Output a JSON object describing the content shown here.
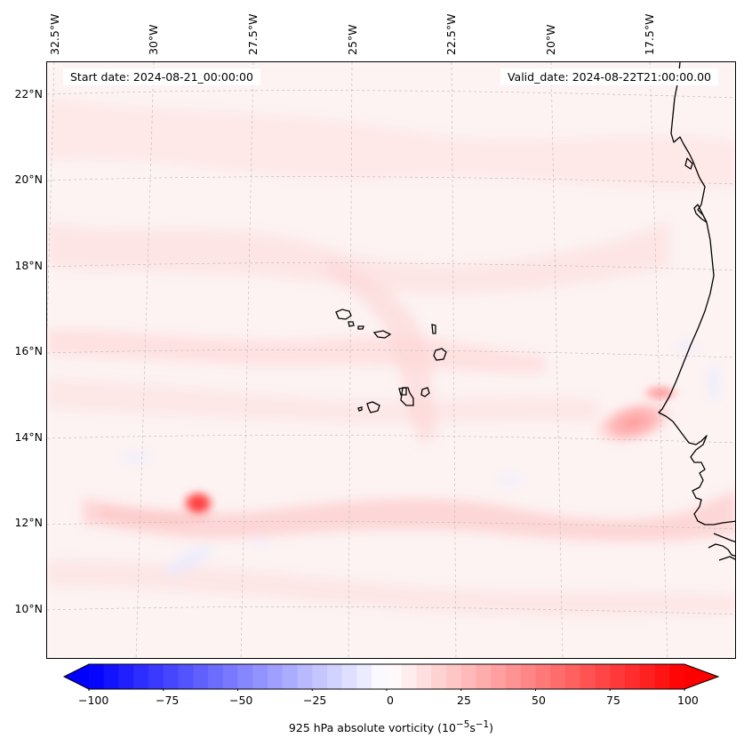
{
  "map": {
    "start_date": "Start date: 2024-08-21_00:00:00",
    "valid_date": "Valid_date: 2024-08-22T21:00:00.00",
    "field": "925 hPa absolute vorticity",
    "longitude_labels": [
      "32.5°W",
      "30°W",
      "27.5°W",
      "25°W",
      "22.5°W",
      "20°W",
      "17.5°W"
    ],
    "latitude_labels": [
      "22°N",
      "20°N",
      "18°N",
      "16°N",
      "14°N",
      "12°N",
      "10°N"
    ],
    "extent": {
      "lon_min": -33.3,
      "lon_max": -15.4,
      "lat_min": 8.9,
      "lat_max": 22.8
    },
    "features": [
      {
        "name": "Cape Verde Islands",
        "type": "islands"
      },
      {
        "name": "West African coastline",
        "type": "coastline"
      },
      {
        "name": "vorticity maximum",
        "lon": -29.4,
        "lat": 12.4,
        "value_approx": 70
      },
      {
        "name": "coastal vorticity maximum",
        "lon": -17.8,
        "lat": 14.2,
        "value_approx": 40
      }
    ]
  },
  "colorbar": {
    "ticks": [
      "−100",
      "−75",
      "−50",
      "−25",
      "0",
      "25",
      "50",
      "75",
      "100"
    ],
    "label_text": "925 hPa absolute vorticity (10",
    "label_exp1": "−5",
    "label_mid": "s",
    "label_exp2": "−1",
    "label_end": ")",
    "min": -100,
    "max": 100,
    "step": 5,
    "colormap": "bwr",
    "color_low": "#0000ff",
    "color_mid": "#ffffff",
    "color_high": "#ff0000"
  }
}
